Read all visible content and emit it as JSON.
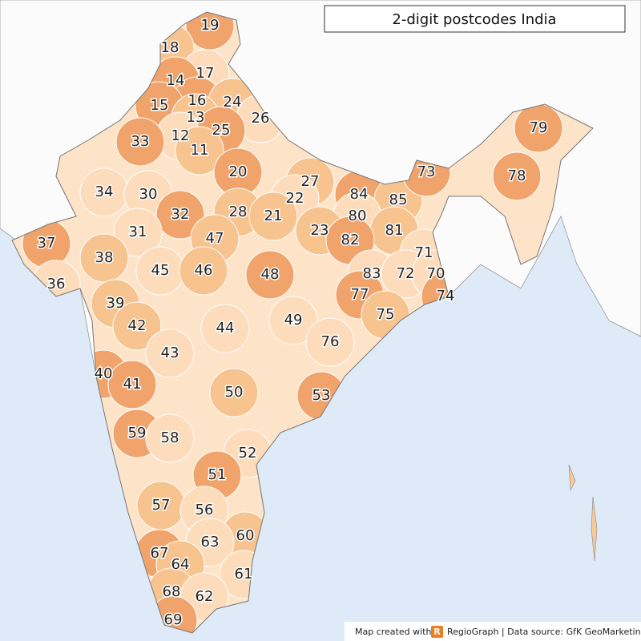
{
  "title": "2-digit postcodes India",
  "regions": [
    "19",
    "18",
    "17",
    "14",
    "16",
    "24",
    "15",
    "13",
    "26",
    "12",
    "25",
    "33",
    "11",
    "20",
    "27",
    "84",
    "85",
    "73",
    "79",
    "78",
    "34",
    "30",
    "22",
    "28",
    "21",
    "80",
    "32",
    "81",
    "23",
    "82",
    "31",
    "47",
    "37",
    "38",
    "71",
    "45",
    "46",
    "48",
    "83",
    "72",
    "70",
    "36",
    "77",
    "74",
    "39",
    "75",
    "49",
    "42",
    "44",
    "76",
    "43",
    "40",
    "41",
    "50",
    "53",
    "59",
    "58",
    "52",
    "51",
    "57",
    "56",
    "60",
    "63",
    "67",
    "64",
    "61",
    "68",
    "62",
    "69"
  ],
  "footer": {
    "prefix": "Map created with",
    "logo": "R",
    "text": "RegioGraph | Data source: GfK GeoMarketing"
  }
}
